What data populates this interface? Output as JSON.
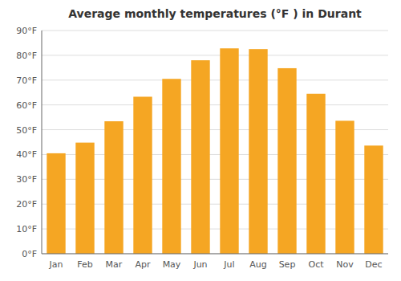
{
  "chart_data": {
    "type": "bar",
    "title": "Average monthly temperatures (°F ) in Durant",
    "categories": [
      "Jan",
      "Feb",
      "Mar",
      "Apr",
      "May",
      "Jun",
      "Jul",
      "Aug",
      "Sep",
      "Oct",
      "Nov",
      "Dec"
    ],
    "values": [
      40.5,
      44.8,
      53.4,
      63.3,
      70.5,
      78.0,
      82.8,
      82.5,
      74.8,
      64.5,
      53.6,
      43.6
    ],
    "color": "#F5A623",
    "ylim": [
      0,
      90
    ],
    "yticks": [
      {
        "value": 0,
        "label": "0°F"
      },
      {
        "value": 10,
        "label": "10°F"
      },
      {
        "value": 20,
        "label": "20°F"
      },
      {
        "value": 30,
        "label": "30°F"
      },
      {
        "value": 40,
        "label": "40°F"
      },
      {
        "value": 50,
        "label": "50°F"
      },
      {
        "value": 60,
        "label": "60°F"
      },
      {
        "value": 70,
        "label": "70°F"
      },
      {
        "value": 80,
        "label": "80°F"
      },
      {
        "value": 90,
        "label": "90°F"
      }
    ],
    "grid": true
  }
}
